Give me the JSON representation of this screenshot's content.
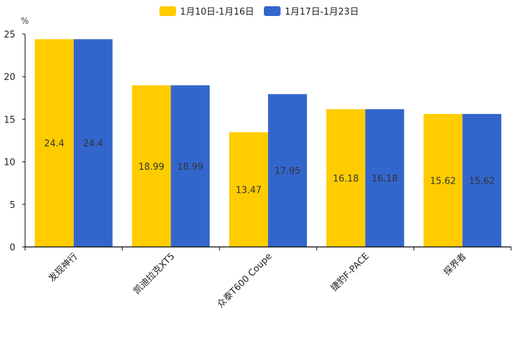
{
  "chart_data": {
    "type": "bar",
    "title": "",
    "xlabel": "",
    "ylabel": "%",
    "ylim": [
      0,
      25
    ],
    "yticks": [
      0,
      5,
      10,
      15,
      20,
      25
    ],
    "categories": [
      "发现神行",
      "凯迪拉克XT5",
      "众泰T600 Coupe",
      "捷豹F-PACE",
      "探界者"
    ],
    "series": [
      {
        "name": "1月10日-1月16日",
        "color": "#ffcc00",
        "values": [
          24.4,
          18.99,
          13.47,
          16.18,
          15.62
        ]
      },
      {
        "name": "1月17日-1月23日",
        "color": "#3366cc",
        "values": [
          24.4,
          18.99,
          17.95,
          16.18,
          15.62
        ]
      }
    ],
    "grid": false,
    "legend_position": "top-center"
  }
}
